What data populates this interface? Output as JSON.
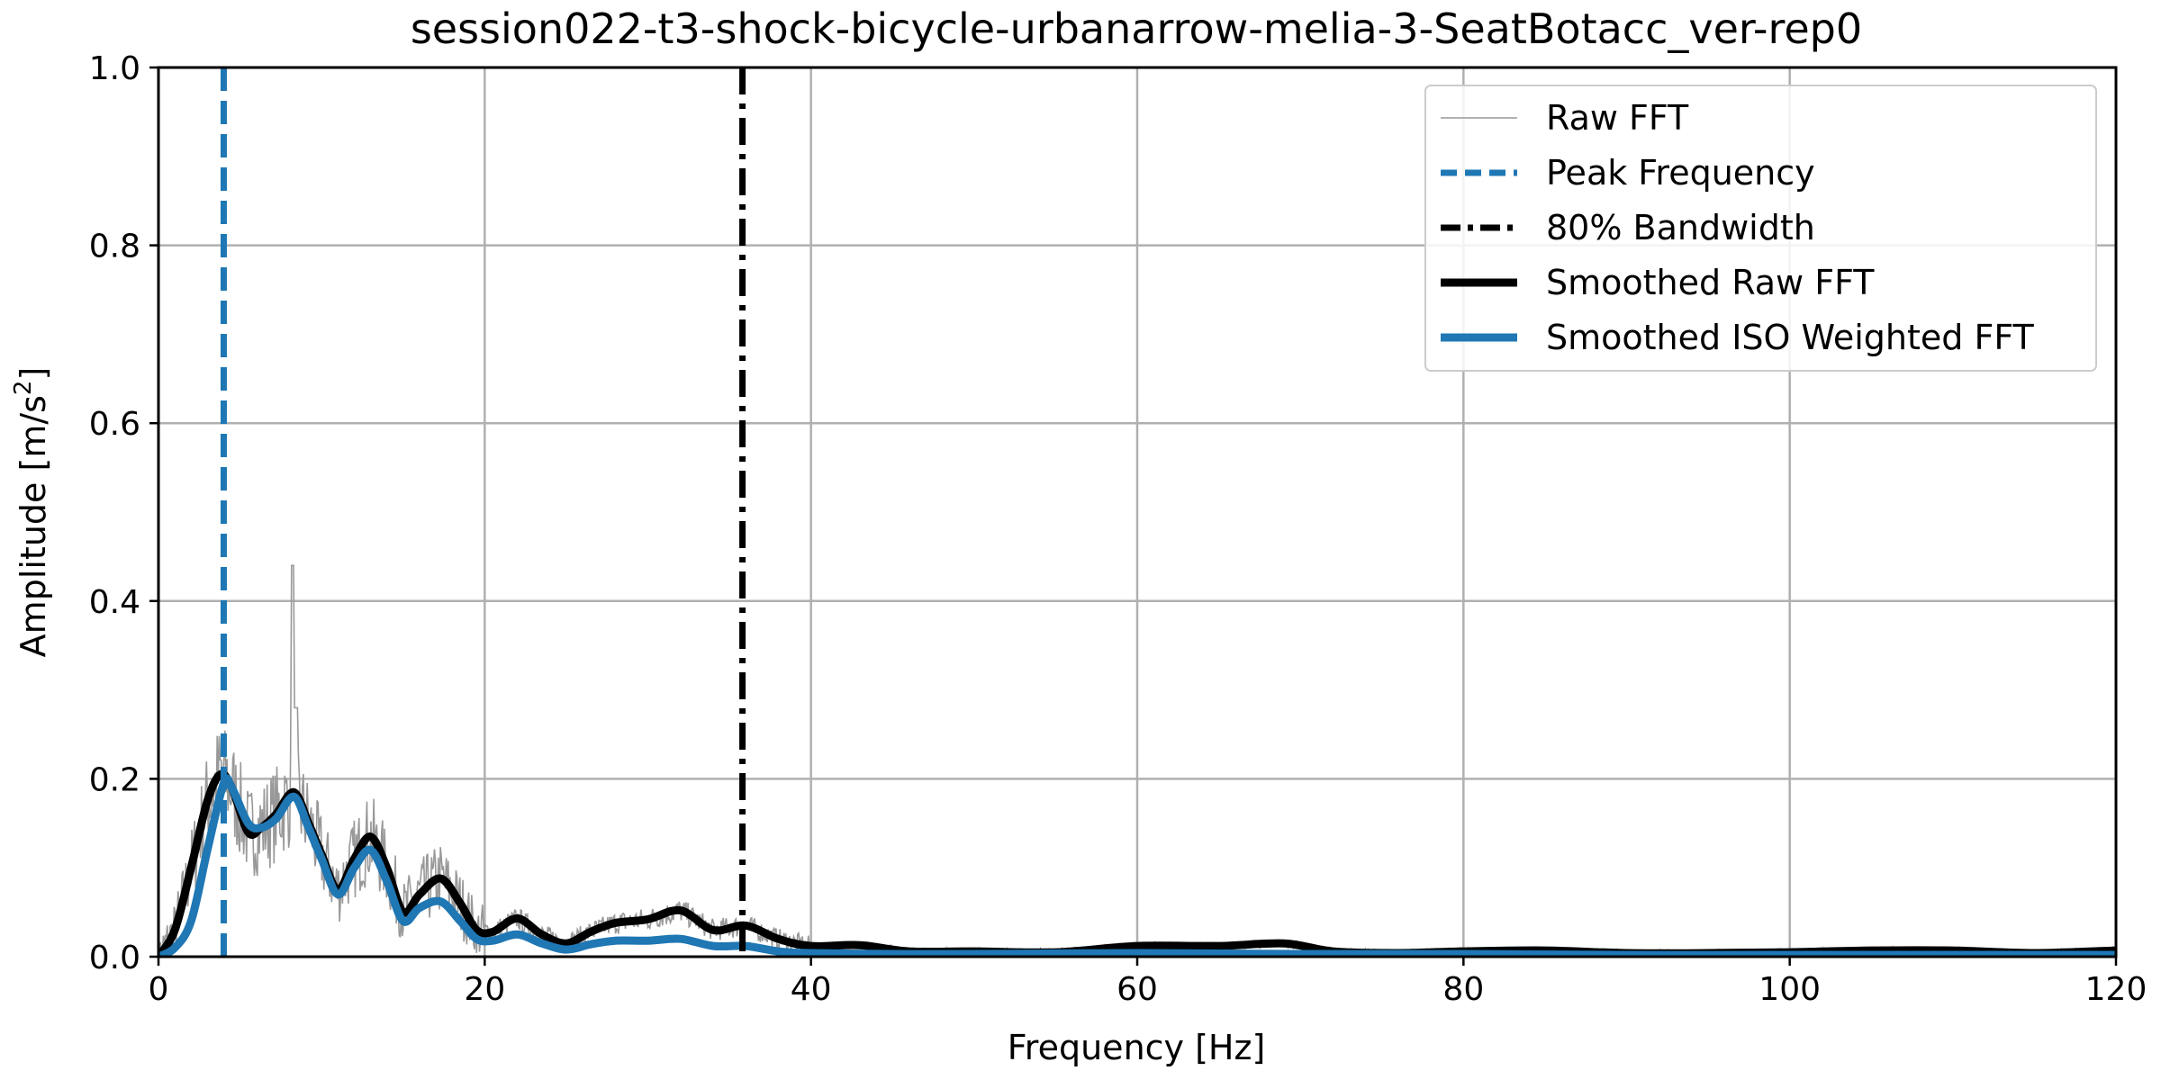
{
  "chart_data": {
    "type": "line",
    "title": "session022-t3-shock-bicycle-urbanarrow-melia-3-SeatBotacc_ver-rep0",
    "xlabel": "Frequency [Hz]",
    "ylabel_main": "Amplitude [m/s",
    "ylabel_sup": "2",
    "ylabel_end": "]",
    "xlim": [
      0,
      120
    ],
    "ylim": [
      0,
      1.0
    ],
    "xticks": [
      0,
      20,
      40,
      60,
      80,
      100,
      120
    ],
    "xtick_labels": [
      "0",
      "20",
      "40",
      "60",
      "80",
      "100",
      "120"
    ],
    "yticks": [
      0.0,
      0.2,
      0.4,
      0.6,
      0.8,
      1.0
    ],
    "ytick_labels": [
      "0.0",
      "0.2",
      "0.4",
      "0.6",
      "0.8",
      "1.0"
    ],
    "grid": true,
    "legend_position": "top-right",
    "colors": {
      "raw": "#999999",
      "peak": "#1f77b4",
      "bandwidth": "#000000",
      "smoothed_raw": "#000000",
      "smoothed_iso": "#1f77b4"
    },
    "legend": [
      {
        "key": "raw",
        "label": "Raw FFT"
      },
      {
        "key": "peak",
        "label": "Peak Frequency"
      },
      {
        "key": "bandwidth",
        "label": "80% Bandwidth"
      },
      {
        "key": "smoothed_raw",
        "label": "Smoothed Raw FFT"
      },
      {
        "key": "smoothed_iso",
        "label": "Smoothed ISO Weighted FFT"
      }
    ],
    "peak_frequency": 4.0,
    "bandwidth_80": 35.8,
    "series": [
      {
        "key": "smoothed_raw",
        "name": "Smoothed Raw FFT",
        "x": [
          0,
          1,
          2,
          3,
          3.8,
          4.5,
          5.5,
          6.3,
          7.2,
          8.3,
          9.2,
          10,
          11,
          12,
          13,
          14,
          15,
          16,
          17.3,
          18.5,
          19.5,
          20.5,
          22,
          23.5,
          25,
          26.5,
          28,
          30,
          32,
          34,
          36,
          38,
          40,
          43,
          46,
          50,
          55,
          60,
          65,
          69,
          72,
          76,
          80,
          85,
          90,
          95,
          100,
          105,
          110,
          115,
          120
        ],
        "y": [
          0.0,
          0.03,
          0.1,
          0.175,
          0.205,
          0.19,
          0.14,
          0.145,
          0.16,
          0.185,
          0.15,
          0.115,
          0.075,
          0.11,
          0.135,
          0.1,
          0.05,
          0.07,
          0.088,
          0.06,
          0.03,
          0.028,
          0.043,
          0.025,
          0.015,
          0.028,
          0.038,
          0.042,
          0.052,
          0.03,
          0.035,
          0.02,
          0.012,
          0.013,
          0.006,
          0.006,
          0.005,
          0.012,
          0.012,
          0.015,
          0.006,
          0.004,
          0.006,
          0.007,
          0.004,
          0.004,
          0.005,
          0.007,
          0.007,
          0.004,
          0.007
        ]
      },
      {
        "key": "smoothed_iso",
        "name": "Smoothed ISO Weighted FFT",
        "x": [
          0,
          1,
          2,
          3,
          4,
          4.5,
          5.5,
          6.3,
          7.2,
          8.3,
          9.2,
          10,
          11,
          12,
          13,
          14,
          15,
          16,
          17.3,
          18.5,
          19.5,
          20.5,
          22,
          23.5,
          25,
          26.5,
          28,
          30,
          32,
          34,
          36,
          38,
          40,
          45,
          50,
          60,
          70,
          80,
          90,
          100,
          110,
          120
        ],
        "y": [
          0.0,
          0.01,
          0.04,
          0.12,
          0.195,
          0.19,
          0.15,
          0.145,
          0.155,
          0.18,
          0.145,
          0.11,
          0.07,
          0.1,
          0.12,
          0.085,
          0.04,
          0.055,
          0.062,
          0.04,
          0.02,
          0.018,
          0.025,
          0.015,
          0.008,
          0.014,
          0.018,
          0.018,
          0.02,
          0.012,
          0.012,
          0.006,
          0.004,
          0.003,
          0.003,
          0.004,
          0.003,
          0.003,
          0.002,
          0.002,
          0.002,
          0.002
        ]
      }
    ]
  }
}
